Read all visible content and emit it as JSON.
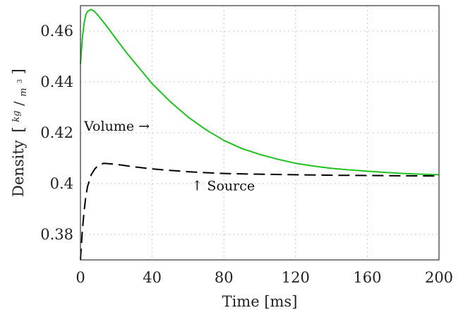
{
  "chart_data": {
    "type": "line",
    "xlabel": "Time [ms]",
    "ylabel_main": "Density",
    "ylabel_unit": {
      "num": "kg",
      "den": "m",
      "exp": "3"
    },
    "xlim": [
      0,
      200
    ],
    "ylim": [
      0.37,
      0.47
    ],
    "xticks": [
      0,
      40,
      80,
      120,
      160,
      200
    ],
    "yticks": [
      0.38,
      0.4,
      0.42,
      0.44,
      0.46
    ],
    "xtick_labels": [
      "0",
      "40",
      "80",
      "120",
      "160",
      "200"
    ],
    "ytick_labels": [
      "0.38",
      "0.4",
      "0.42",
      "0.44",
      "0.46"
    ],
    "grid": true,
    "series": [
      {
        "color": "#1fc11f",
        "dash": "solid",
        "points": [
          [
            0,
            0.447
          ],
          [
            1,
            0.457
          ],
          [
            2,
            0.463
          ],
          [
            3,
            0.4665
          ],
          [
            4,
            0.4678
          ],
          [
            6,
            0.4685
          ],
          [
            8,
            0.4676
          ],
          [
            10,
            0.466
          ],
          [
            14,
            0.4625
          ],
          [
            20,
            0.4568
          ],
          [
            26,
            0.4512
          ],
          [
            30,
            0.4478
          ],
          [
            40,
            0.4393
          ],
          [
            50,
            0.4323
          ],
          [
            60,
            0.4262
          ],
          [
            70,
            0.4212
          ],
          [
            80,
            0.417
          ],
          [
            90,
            0.4138
          ],
          [
            100,
            0.4115
          ],
          [
            110,
            0.4096
          ],
          [
            120,
            0.408
          ],
          [
            130,
            0.4069
          ],
          [
            140,
            0.406
          ],
          [
            150,
            0.4054
          ],
          [
            160,
            0.4049
          ],
          [
            170,
            0.4044
          ],
          [
            180,
            0.404
          ],
          [
            190,
            0.4037
          ],
          [
            200,
            0.4035
          ]
        ]
      },
      {
        "color": "#000000",
        "dash": "dashed",
        "points": [
          [
            0,
            0.37
          ],
          [
            1,
            0.381
          ],
          [
            2,
            0.389
          ],
          [
            3,
            0.395
          ],
          [
            4,
            0.399
          ],
          [
            6,
            0.4035
          ],
          [
            8,
            0.4058
          ],
          [
            10,
            0.4072
          ],
          [
            13,
            0.408
          ],
          [
            20,
            0.4076
          ],
          [
            30,
            0.4066
          ],
          [
            40,
            0.4058
          ],
          [
            50,
            0.4052
          ],
          [
            60,
            0.4047
          ],
          [
            70,
            0.4043
          ],
          [
            80,
            0.404
          ],
          [
            100,
            0.4037
          ],
          [
            120,
            0.4035
          ],
          [
            140,
            0.4033
          ],
          [
            160,
            0.4032
          ],
          [
            180,
            0.4031
          ],
          [
            200,
            0.403
          ]
        ]
      }
    ],
    "annotations": [
      {
        "text": "Volume →",
        "x": 2,
        "y": 0.4208
      },
      {
        "text": "↑ Source",
        "x": 62,
        "y": 0.3974
      }
    ]
  }
}
